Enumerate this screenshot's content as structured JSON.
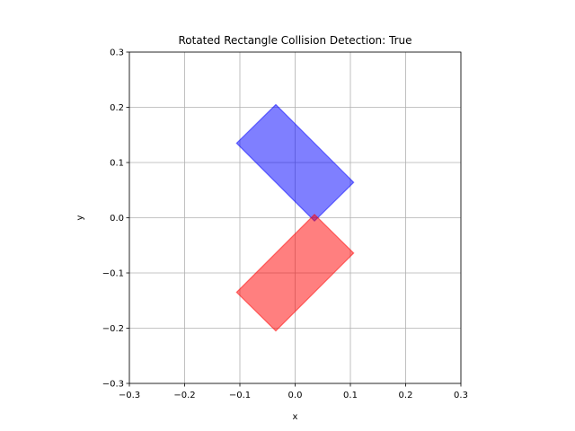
{
  "chart_data": {
    "type": "polygon",
    "title": "Rotated Rectangle Collision Detection: True",
    "xlabel": "x",
    "ylabel": "y",
    "xlim": [
      -0.3,
      0.3
    ],
    "ylim": [
      -0.3,
      0.3
    ],
    "xticks": [
      -0.3,
      -0.2,
      -0.1,
      0.0,
      0.1,
      0.2,
      0.3
    ],
    "xtick_labels": [
      "−0.3",
      "−0.2",
      "−0.1",
      "0.0",
      "0.1",
      "0.2",
      "0.3"
    ],
    "yticks": [
      -0.3,
      -0.2,
      -0.1,
      0.0,
      0.1,
      0.2,
      0.3
    ],
    "ytick_labels": [
      "−0.3",
      "−0.2",
      "−0.1",
      "0.0",
      "0.1",
      "0.2",
      "0.3"
    ],
    "grid": true,
    "aspect": "equal",
    "shapes": [
      {
        "color": "#0000ff",
        "opacity": 0.5,
        "points": [
          [
            -0.035,
            0.205
          ],
          [
            0.106,
            0.064
          ],
          [
            0.035,
            -0.006
          ],
          [
            -0.106,
            0.135
          ]
        ]
      },
      {
        "color": "#ff0000",
        "opacity": 0.5,
        "points": [
          [
            0.035,
            0.006
          ],
          [
            0.106,
            -0.064
          ],
          [
            -0.035,
            -0.205
          ],
          [
            -0.106,
            -0.135
          ]
        ]
      }
    ]
  }
}
